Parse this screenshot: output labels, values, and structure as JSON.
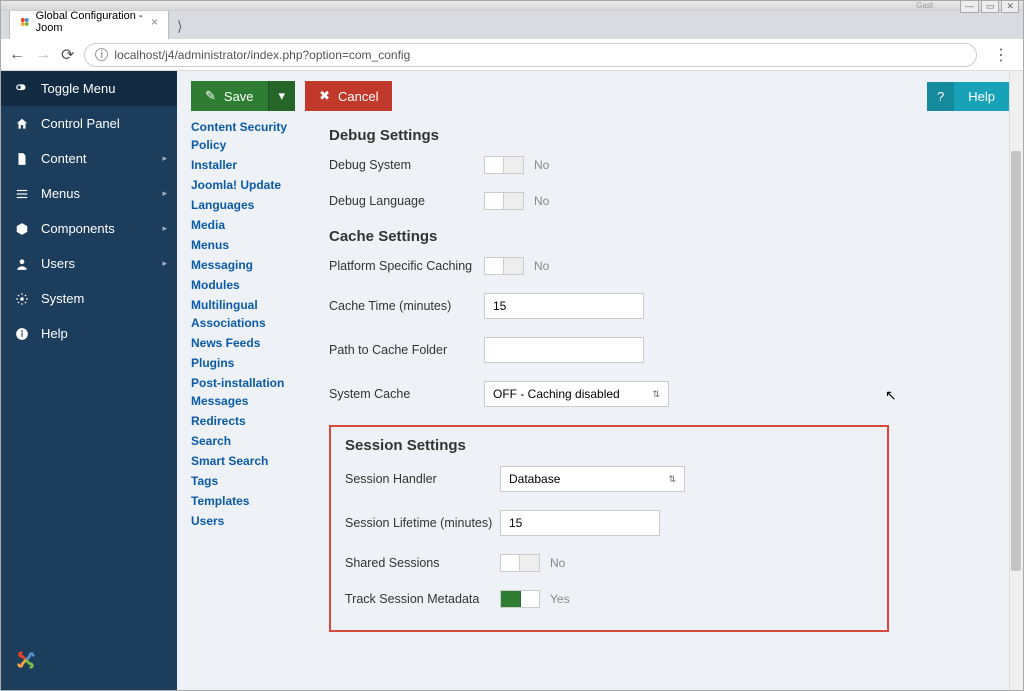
{
  "window": {
    "user": "Gast",
    "tab_title": "Global Configuration - Joom",
    "url": "localhost/j4/administrator/index.php?option=com_config"
  },
  "actions": {
    "save": "Save",
    "cancel": "Cancel",
    "help": "Help",
    "help_q": "?"
  },
  "sidebar": {
    "toggle": "Toggle Menu",
    "items": [
      {
        "label": "Control Panel",
        "icon": "home"
      },
      {
        "label": "Content",
        "icon": "file",
        "sub": true
      },
      {
        "label": "Menus",
        "icon": "list",
        "sub": true
      },
      {
        "label": "Components",
        "icon": "cube",
        "sub": true
      },
      {
        "label": "Users",
        "icon": "user",
        "sub": true
      },
      {
        "label": "System",
        "icon": "gear"
      },
      {
        "label": "Help",
        "icon": "info"
      }
    ]
  },
  "links": [
    "Content Security Policy",
    "Installer",
    "Joomla! Update",
    "Languages",
    "Media",
    "Menus",
    "Messaging",
    "Modules",
    "Multilingual Associations",
    "News Feeds",
    "Plugins",
    "Post-installation Messages",
    "Redirects",
    "Search",
    "Smart Search",
    "Tags",
    "Templates",
    "Users"
  ],
  "sections": {
    "debug": {
      "title": "Debug Settings",
      "debug_system": {
        "label": "Debug System",
        "state": "No"
      },
      "debug_language": {
        "label": "Debug Language",
        "state": "No"
      }
    },
    "cache": {
      "title": "Cache Settings",
      "platform": {
        "label": "Platform Specific Caching",
        "state": "No"
      },
      "cache_time": {
        "label": "Cache Time (minutes)",
        "value": "15"
      },
      "cache_path": {
        "label": "Path to Cache Folder",
        "value": ""
      },
      "system_cache": {
        "label": "System Cache",
        "value": "OFF - Caching disabled"
      }
    },
    "session": {
      "title": "Session Settings",
      "handler": {
        "label": "Session Handler",
        "value": "Database"
      },
      "lifetime": {
        "label": "Session Lifetime (minutes)",
        "value": "15"
      },
      "shared": {
        "label": "Shared Sessions",
        "state": "No"
      },
      "track": {
        "label": "Track Session Metadata",
        "state": "Yes"
      }
    }
  }
}
